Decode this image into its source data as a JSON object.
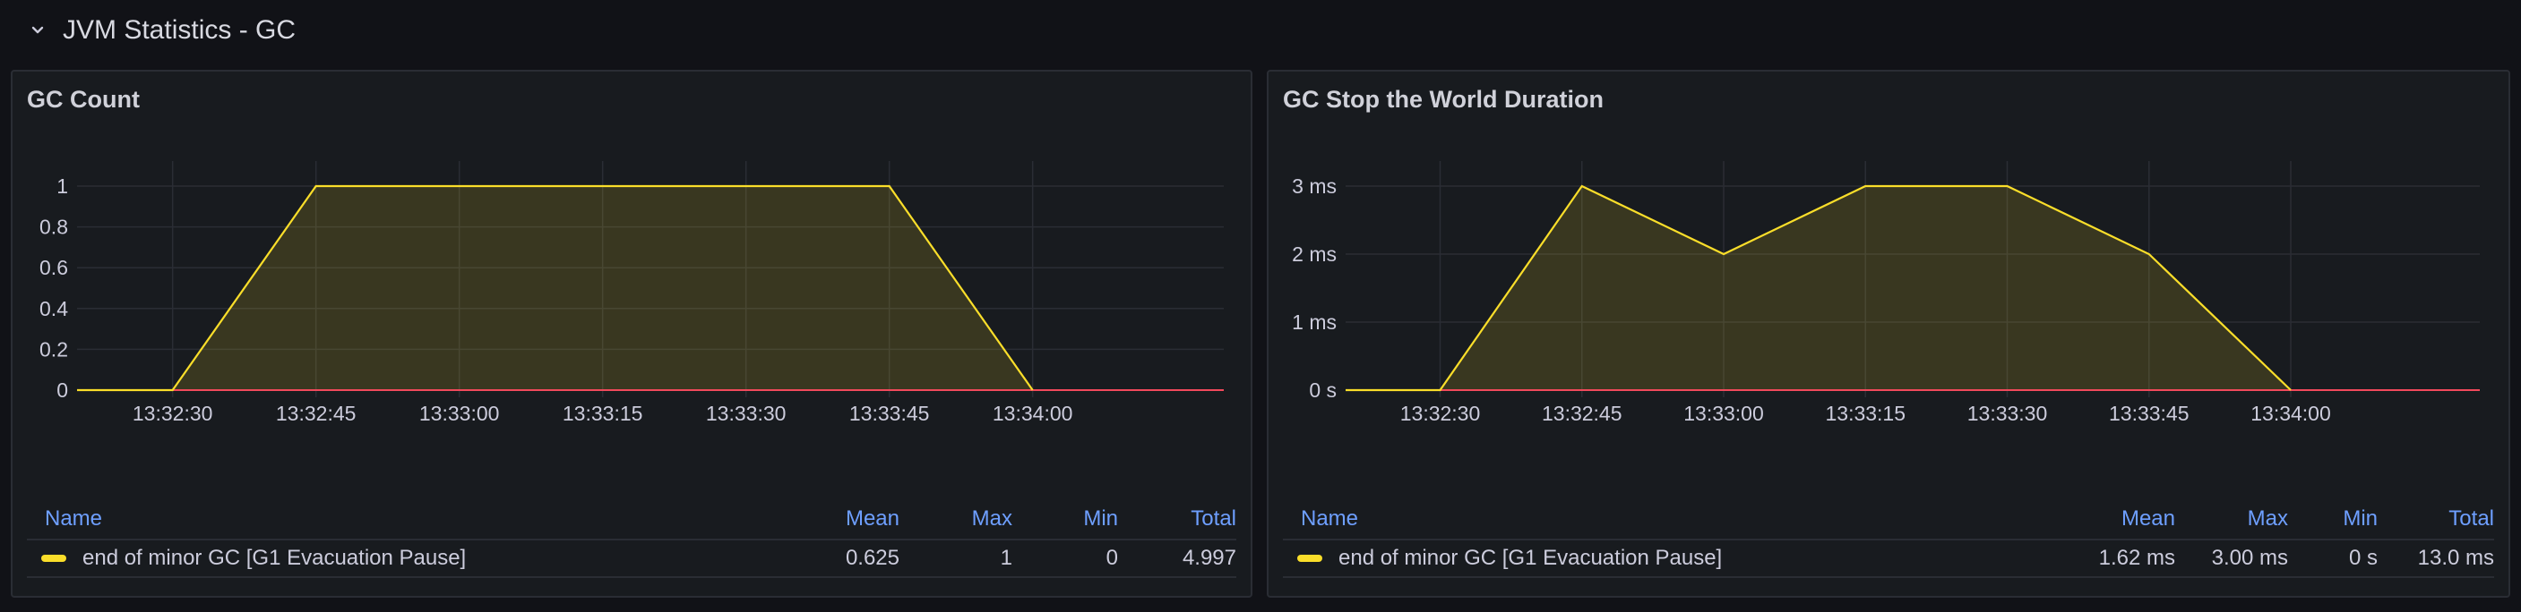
{
  "section": {
    "title": "JVM Statistics - GC",
    "collapse_icon": "chevron-down-icon"
  },
  "colors": {
    "series": "#fade2a",
    "fill": "rgba(250,222,42,0.15)",
    "baseline": "#f2495c",
    "header": "#6e9fff",
    "grid": "#2a2d34"
  },
  "legend_headers": {
    "name": "Name",
    "mean": "Mean",
    "max": "Max",
    "min": "Min",
    "total": "Total"
  },
  "panels": [
    {
      "title": "GC Count",
      "legend_row": {
        "name": "end of minor GC [G1 Evacuation Pause]",
        "mean": "0.625",
        "max": "1",
        "min": "0",
        "total": "4.997"
      }
    },
    {
      "title": "GC Stop the World Duration",
      "legend_row": {
        "name": "end of minor GC [G1 Evacuation Pause]",
        "mean": "1.62 ms",
        "max": "3.00 ms",
        "min": "0 s",
        "total": "13.0 ms"
      }
    }
  ],
  "chart_data": [
    {
      "type": "area",
      "title": "GC Count",
      "x_ticks": [
        "13:32:30",
        "13:32:45",
        "13:33:00",
        "13:33:15",
        "13:33:30",
        "13:33:45",
        "13:34:00"
      ],
      "y_ticks": [
        "0",
        "0.2",
        "0.4",
        "0.6",
        "0.8",
        "1"
      ],
      "ylim": [
        0,
        1
      ],
      "series": [
        {
          "name": "end of minor GC [G1 Evacuation Pause]",
          "x": [
            "13:32:20",
            "13:32:30",
            "13:32:45",
            "13:33:00",
            "13:33:15",
            "13:33:30",
            "13:33:45",
            "13:34:00"
          ],
          "values": [
            0,
            0,
            1,
            1,
            1,
            1,
            1,
            0
          ]
        }
      ]
    },
    {
      "type": "area",
      "title": "GC Stop the World Duration",
      "x_ticks": [
        "13:32:30",
        "13:32:45",
        "13:33:00",
        "13:33:15",
        "13:33:30",
        "13:33:45",
        "13:34:00"
      ],
      "y_ticks": [
        "0 s",
        "1 ms",
        "2 ms",
        "3 ms"
      ],
      "ylim": [
        0,
        3
      ],
      "yunit": "ms",
      "series": [
        {
          "name": "end of minor GC [G1 Evacuation Pause]",
          "x": [
            "13:32:20",
            "13:32:30",
            "13:32:45",
            "13:33:00",
            "13:33:15",
            "13:33:30",
            "13:33:45",
            "13:34:00"
          ],
          "values": [
            0,
            0,
            3,
            2,
            3,
            3,
            2,
            0
          ]
        }
      ]
    }
  ]
}
